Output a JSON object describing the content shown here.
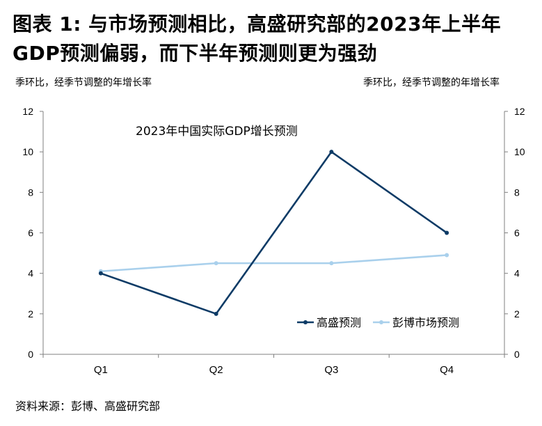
{
  "header": {
    "title_line1": "图表 1: 与市场预测相比，高盛研究部的2023年上半年",
    "title_line2": "GDP预测偏弱，而下半年预测则更为强劲"
  },
  "axes": {
    "left_unit": "季环比，经季节调整的年增长率",
    "right_unit": "季环比，经季节调整的年增长率"
  },
  "footer": {
    "source": "资料来源：彭博、高盛研究部"
  },
  "colors": {
    "series1": "#0d3b66",
    "series2": "#a9d0ec",
    "axis": "#7f7f7f"
  },
  "chart_data": {
    "type": "line",
    "title": "2023年中国实际GDP增长预测",
    "categories": [
      "Q1",
      "Q2",
      "Q3",
      "Q4"
    ],
    "series": [
      {
        "name": "高盛预测",
        "values": [
          4,
          2,
          10,
          6
        ]
      },
      {
        "name": "彭博市场预测",
        "values": [
          4.1,
          4.5,
          4.5,
          4.9
        ]
      }
    ],
    "ylim": [
      0,
      12
    ],
    "yticks": [
      0,
      2,
      4,
      6,
      8,
      10,
      12
    ],
    "y2lim": [
      0,
      12
    ],
    "y2ticks": [
      0,
      2,
      4,
      6,
      8,
      10,
      12
    ],
    "grid": false,
    "legend_position": "inside-bottom-right"
  }
}
